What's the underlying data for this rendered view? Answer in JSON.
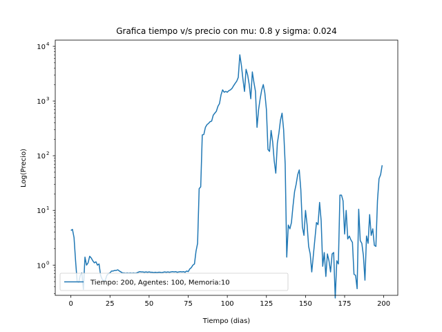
{
  "chart_data": {
    "type": "line",
    "title": "Grafica tiempo v/s precio con mu: 0.8 y sigma: 0.024",
    "xlabel": "Tiempo (dias)",
    "ylabel": "Log(Precio)",
    "y_scale": "log",
    "xlim": [
      -10,
      209
    ],
    "ylim": [
      0.28,
      13000
    ],
    "x_ticks": [
      0,
      25,
      50,
      75,
      100,
      125,
      150,
      175,
      200
    ],
    "y_ticks": [
      1,
      10,
      100,
      1000,
      10000
    ],
    "y_tick_labels": [
      {
        "base": "10",
        "exp": "0"
      },
      {
        "base": "10",
        "exp": "1"
      },
      {
        "base": "10",
        "exp": "2"
      },
      {
        "base": "10",
        "exp": "3"
      },
      {
        "base": "10",
        "exp": "4"
      }
    ],
    "grid": false,
    "legend_position": "lower-left",
    "series": [
      {
        "name": "Tiempo: 200, Agentes: 100, Memoria:10",
        "color": "#1f77b4",
        "points": [
          [
            0,
            4.3
          ],
          [
            1,
            4.5
          ],
          [
            2,
            3.2
          ],
          [
            3,
            1.2
          ],
          [
            4,
            0.5
          ],
          [
            5,
            0.48
          ],
          [
            6,
            0.65
          ],
          [
            7,
            0.72
          ],
          [
            8,
            0.36
          ],
          [
            9,
            1.4
          ],
          [
            10,
            1.0
          ],
          [
            11,
            1.1
          ],
          [
            12,
            1.45
          ],
          [
            13,
            1.35
          ],
          [
            14,
            1.2
          ],
          [
            15,
            1.1
          ],
          [
            16,
            1.15
          ],
          [
            17,
            1.0
          ],
          [
            18,
            1.05
          ],
          [
            19,
            0.65
          ],
          [
            20,
            0.55
          ],
          [
            21,
            0.52
          ],
          [
            22,
            0.53
          ],
          [
            23,
            0.65
          ],
          [
            24,
            0.7
          ],
          [
            25,
            0.72
          ],
          [
            26,
            0.78
          ],
          [
            27,
            0.78
          ],
          [
            28,
            0.8
          ],
          [
            29,
            0.8
          ],
          [
            30,
            0.82
          ],
          [
            31,
            0.78
          ],
          [
            32,
            0.75
          ],
          [
            33,
            0.72
          ],
          [
            34,
            0.72
          ],
          [
            35,
            0.71
          ],
          [
            36,
            0.72
          ],
          [
            37,
            0.71
          ],
          [
            38,
            0.72
          ],
          [
            39,
            0.71
          ],
          [
            40,
            0.72
          ],
          [
            41,
            0.71
          ],
          [
            42,
            0.72
          ],
          [
            43,
            0.74
          ],
          [
            44,
            0.76
          ],
          [
            45,
            0.75
          ],
          [
            46,
            0.75
          ],
          [
            47,
            0.74
          ],
          [
            48,
            0.75
          ],
          [
            49,
            0.74
          ],
          [
            50,
            0.75
          ],
          [
            51,
            0.74
          ],
          [
            52,
            0.74
          ],
          [
            53,
            0.73
          ],
          [
            54,
            0.74
          ],
          [
            55,
            0.73
          ],
          [
            56,
            0.74
          ],
          [
            57,
            0.74
          ],
          [
            58,
            0.73
          ],
          [
            59,
            0.74
          ],
          [
            60,
            0.75
          ],
          [
            61,
            0.74
          ],
          [
            62,
            0.75
          ],
          [
            63,
            0.74
          ],
          [
            64,
            0.75
          ],
          [
            65,
            0.76
          ],
          [
            66,
            0.75
          ],
          [
            67,
            0.76
          ],
          [
            68,
            0.74
          ],
          [
            69,
            0.75
          ],
          [
            70,
            0.76
          ],
          [
            71,
            0.75
          ],
          [
            72,
            0.76
          ],
          [
            73,
            0.74
          ],
          [
            74,
            0.78
          ],
          [
            75,
            0.76
          ],
          [
            76,
            0.85
          ],
          [
            77,
            0.9
          ],
          [
            78,
            1.0
          ],
          [
            79,
            1.05
          ],
          [
            80,
            1.8
          ],
          [
            81,
            2.5
          ],
          [
            82,
            25
          ],
          [
            83,
            27
          ],
          [
            84,
            240
          ],
          [
            85,
            245
          ],
          [
            86,
            330
          ],
          [
            87,
            370
          ],
          [
            88,
            390
          ],
          [
            89,
            420
          ],
          [
            90,
            430
          ],
          [
            91,
            550
          ],
          [
            92,
            600
          ],
          [
            93,
            650
          ],
          [
            94,
            800
          ],
          [
            95,
            900
          ],
          [
            96,
            1300
          ],
          [
            97,
            1600
          ],
          [
            98,
            1450
          ],
          [
            99,
            1500
          ],
          [
            100,
            1450
          ],
          [
            101,
            1550
          ],
          [
            102,
            1600
          ],
          [
            103,
            1700
          ],
          [
            104,
            1900
          ],
          [
            105,
            2100
          ],
          [
            106,
            2300
          ],
          [
            107,
            2700
          ],
          [
            108,
            7000
          ],
          [
            109,
            4500
          ],
          [
            110,
            2500
          ],
          [
            111,
            1500
          ],
          [
            112,
            3800
          ],
          [
            113,
            3000
          ],
          [
            114,
            2000
          ],
          [
            115,
            1100
          ],
          [
            116,
            3400
          ],
          [
            117,
            2200
          ],
          [
            118,
            1500
          ],
          [
            119,
            330
          ],
          [
            120,
            700
          ],
          [
            121,
            1100
          ],
          [
            122,
            1600
          ],
          [
            123,
            2000
          ],
          [
            124,
            1400
          ],
          [
            125,
            700
          ],
          [
            126,
            130
          ],
          [
            127,
            120
          ],
          [
            128,
            290
          ],
          [
            129,
            180
          ],
          [
            130,
            80
          ],
          [
            131,
            48
          ],
          [
            132,
            170
          ],
          [
            133,
            260
          ],
          [
            134,
            450
          ],
          [
            135,
            600
          ],
          [
            136,
            300
          ],
          [
            137,
            70
          ],
          [
            138,
            1.4
          ],
          [
            139,
            5.4
          ],
          [
            140,
            4.6
          ],
          [
            141,
            6
          ],
          [
            142,
            12
          ],
          [
            143,
            22
          ],
          [
            144,
            30
          ],
          [
            145,
            45
          ],
          [
            146,
            55
          ],
          [
            147,
            24
          ],
          [
            148,
            5
          ],
          [
            149,
            3.5
          ],
          [
            150,
            10
          ],
          [
            151,
            5.5
          ],
          [
            152,
            2.2
          ],
          [
            153,
            1.6
          ],
          [
            154,
            0.75
          ],
          [
            155,
            1.5
          ],
          [
            156,
            3
          ],
          [
            157,
            6
          ],
          [
            158,
            5.5
          ],
          [
            159,
            14
          ],
          [
            160,
            6.5
          ],
          [
            161,
            0.95
          ],
          [
            162,
            1.7
          ],
          [
            163,
            0.62
          ],
          [
            164,
            1.6
          ],
          [
            165,
            1.2
          ],
          [
            166,
            0.75
          ],
          [
            167,
            1.6
          ],
          [
            168,
            1.7
          ],
          [
            169,
            0.25
          ],
          [
            170,
            1.2
          ],
          [
            171,
            1.05
          ],
          [
            172,
            19
          ],
          [
            173,
            19
          ],
          [
            174,
            15
          ],
          [
            175,
            3.7
          ],
          [
            176,
            10
          ],
          [
            177,
            3
          ],
          [
            178,
            3.4
          ],
          [
            179,
            2.9
          ],
          [
            180,
            2.6
          ],
          [
            181,
            0.68
          ],
          [
            182,
            0.65
          ],
          [
            183,
            0.37
          ],
          [
            184,
            10.5
          ],
          [
            185,
            2.8
          ],
          [
            186,
            2.5
          ],
          [
            187,
            1.5
          ],
          [
            188,
            0.53
          ],
          [
            189,
            3.4
          ],
          [
            190,
            2.5
          ],
          [
            191,
            8.4
          ],
          [
            192,
            3.5
          ],
          [
            193,
            4.6
          ],
          [
            194,
            2.3
          ],
          [
            195,
            2.2
          ],
          [
            196,
            15
          ],
          [
            197,
            38
          ],
          [
            198,
            45
          ],
          [
            199,
            67
          ]
        ]
      }
    ]
  }
}
